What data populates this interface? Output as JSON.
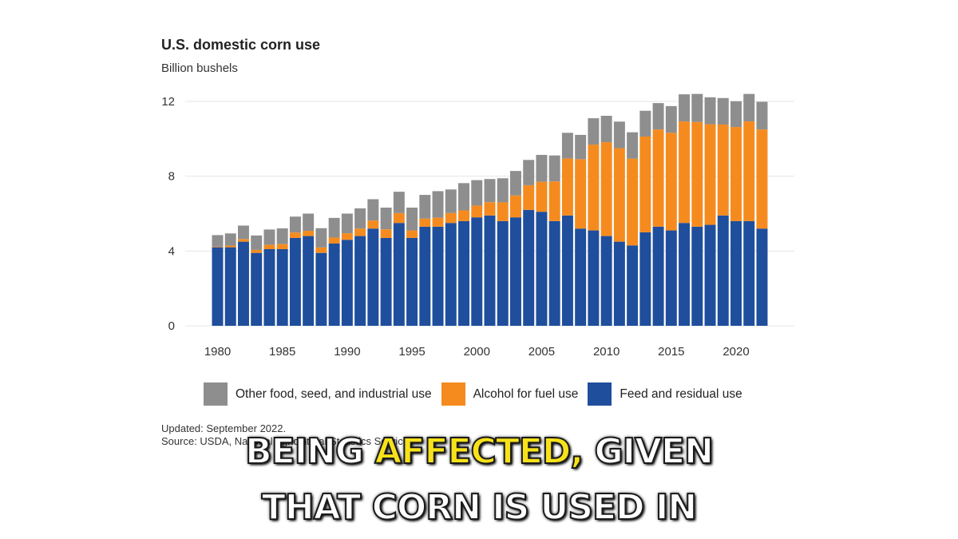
{
  "chart_data": {
    "type": "bar",
    "stacked": true,
    "title": "U.S. domestic corn use",
    "subtitle": "Billion bushels",
    "x": [
      1980,
      1981,
      1982,
      1983,
      1984,
      1985,
      1986,
      1987,
      1988,
      1989,
      1990,
      1991,
      1992,
      1993,
      1994,
      1995,
      1996,
      1997,
      1998,
      1999,
      2000,
      2001,
      2002,
      2003,
      2004,
      2005,
      2006,
      2007,
      2008,
      2009,
      2010,
      2011,
      2012,
      2013,
      2014,
      2015,
      2016,
      2017,
      2018,
      2019,
      2020,
      2021,
      2022
    ],
    "x_ticks": [
      "1980",
      "1985",
      "1990",
      "1995",
      "2000",
      "2005",
      "2010",
      "2015",
      "2020"
    ],
    "y_ticks": [
      "0",
      "4",
      "8",
      "12"
    ],
    "ylim": [
      0,
      13.2
    ],
    "grid": true,
    "legend_position": "bottom",
    "series": [
      {
        "name": "Feed and residual use",
        "color": "#1f4e9c",
        "values": [
          4.2,
          4.2,
          4.5,
          3.9,
          4.1,
          4.1,
          4.7,
          4.8,
          3.9,
          4.4,
          4.6,
          4.8,
          5.2,
          4.7,
          5.5,
          4.7,
          5.3,
          5.3,
          5.5,
          5.6,
          5.8,
          5.9,
          5.6,
          5.8,
          6.2,
          6.1,
          5.6,
          5.9,
          5.2,
          5.1,
          4.8,
          4.5,
          4.3,
          5.0,
          5.3,
          5.1,
          5.5,
          5.3,
          5.4,
          5.9,
          5.6,
          5.6,
          5.2
        ]
      },
      {
        "name": "Alcohol for fuel use",
        "color": "#f58b1f",
        "values": [
          0.03,
          0.09,
          0.14,
          0.16,
          0.23,
          0.27,
          0.29,
          0.28,
          0.29,
          0.32,
          0.35,
          0.4,
          0.43,
          0.46,
          0.53,
          0.4,
          0.43,
          0.48,
          0.53,
          0.57,
          0.63,
          0.71,
          1.0,
          1.17,
          1.32,
          1.6,
          2.12,
          3.05,
          3.71,
          4.59,
          5.02,
          5.0,
          4.64,
          5.12,
          5.2,
          5.22,
          5.43,
          5.6,
          5.38,
          4.86,
          5.03,
          5.33,
          5.3
        ]
      },
      {
        "name": "Other food, seed, and industrial use",
        "color": "#8e8e8e",
        "values": [
          0.62,
          0.65,
          0.72,
          0.77,
          0.82,
          0.84,
          0.85,
          0.92,
          1.03,
          1.05,
          1.05,
          1.08,
          1.14,
          1.16,
          1.14,
          1.22,
          1.27,
          1.42,
          1.26,
          1.46,
          1.36,
          1.24,
          1.29,
          1.31,
          1.35,
          1.44,
          1.39,
          1.37,
          1.3,
          1.41,
          1.41,
          1.42,
          1.41,
          1.38,
          1.41,
          1.43,
          1.45,
          1.5,
          1.44,
          1.42,
          1.38,
          1.47,
          1.48
        ]
      }
    ]
  },
  "legend": {
    "other": "Other food, seed, and industrial use",
    "alcohol": "Alcohol for fuel use",
    "feed": "Feed and residual use"
  },
  "footer": {
    "updated": "Updated: September 2022.",
    "source": "Source: USDA, National Agricultural Statistics Service."
  },
  "captions": {
    "line1_part1": "BEING ",
    "line1_highlight": "AFFECTED,",
    "line1_part2": " GIVEN",
    "line2": "THAT CORN IS USED IN"
  }
}
